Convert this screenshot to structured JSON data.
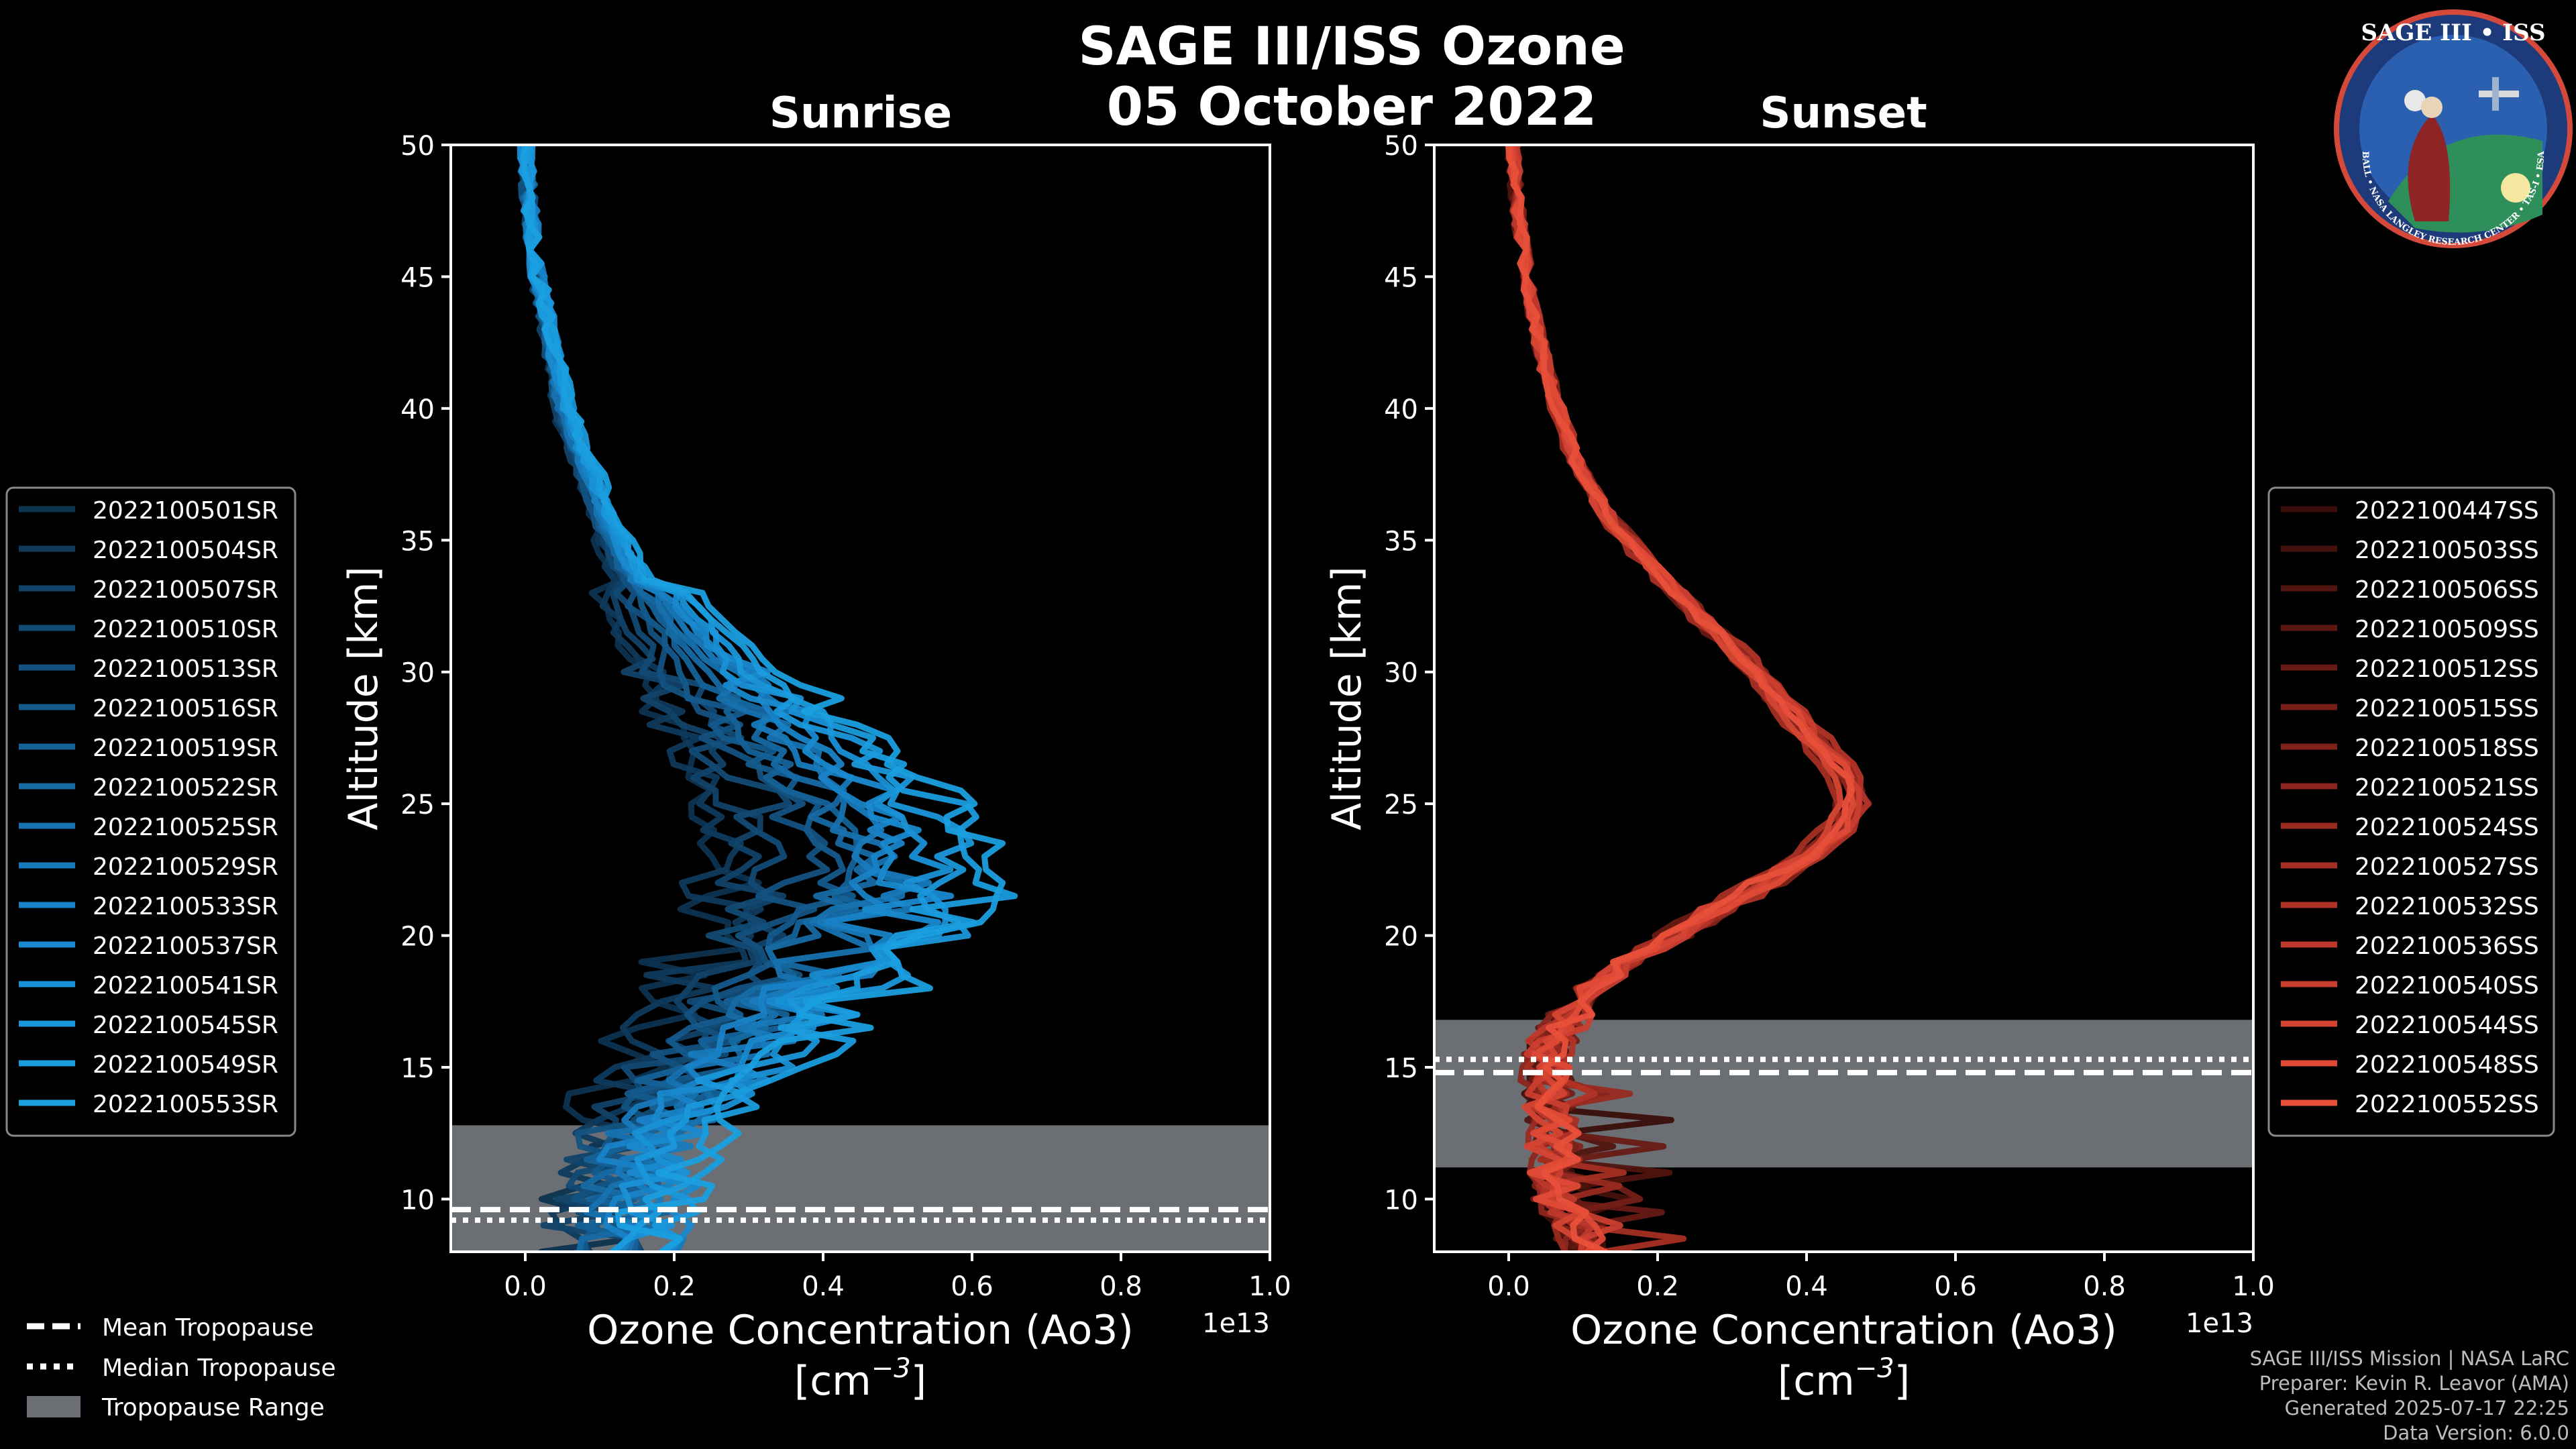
{
  "figure": {
    "title_line1": "SAGE III/ISS Ozone",
    "title_line2": "05 October 2022",
    "credits": [
      "SAGE III/ISS Mission | NASA LaRC",
      "Preparer: Kevin R. Leavor (AMA)",
      "Generated 2025-07-17 22:25",
      "Data Version: 6.0.0"
    ],
    "logo_text": "SAGE III • ISS",
    "logo_ring_text": "BALL • NASA LANGLEY RESEARCH CENTER • TAS-I • ESA"
  },
  "colors": {
    "sunrise": "#1a9fe0",
    "sunset": "#e8503a",
    "tropopause_range": "#6b6e73",
    "background": "#000000"
  },
  "bottom_legend": {
    "mean": "Mean Tropopause",
    "median": "Median Tropopause",
    "range": "Tropopause Range"
  },
  "chart_data": [
    {
      "type": "line",
      "title": "Sunrise",
      "xlabel": "Ozone Concentration (Ao3)",
      "xunit_base": "[cm",
      "xunit_exp": "−3",
      "xunit_close": "]",
      "offset_text": "1e13",
      "ylabel": "Altitude [km]",
      "xlim": [
        -0.1,
        1.0
      ],
      "ylim": [
        8,
        50
      ],
      "xticks": [
        "0.0",
        "0.2",
        "0.4",
        "0.6",
        "0.8",
        "1.0"
      ],
      "xtick_values": [
        0.0,
        0.2,
        0.4,
        0.6,
        0.8,
        1.0
      ],
      "yticks": [
        "10",
        "15",
        "20",
        "25",
        "30",
        "35",
        "40",
        "45",
        "50"
      ],
      "ytick_values": [
        10,
        15,
        20,
        25,
        30,
        35,
        40,
        45,
        50
      ],
      "tropopause": {
        "mean": 9.6,
        "median": 9.2,
        "range": [
          8.0,
          12.8
        ]
      },
      "base_profile": {
        "altitude": [
          50,
          48,
          45,
          43,
          40,
          38,
          36,
          34,
          32,
          30,
          28,
          26,
          25,
          24,
          23,
          22,
          21,
          20,
          19,
          18,
          17,
          16,
          15,
          14,
          13,
          12,
          11,
          10,
          9,
          8
        ],
        "ozone": [
          0.001,
          0.005,
          0.015,
          0.03,
          0.05,
          0.075,
          0.1,
          0.13,
          0.17,
          0.22,
          0.28,
          0.34,
          0.37,
          0.39,
          0.4,
          0.4,
          0.39,
          0.37,
          0.34,
          0.31,
          0.28,
          0.25,
          0.22,
          0.19,
          0.16,
          0.14,
          0.13,
          0.12,
          0.12,
          0.12
        ]
      },
      "series": [
        {
          "name": "2022100501SR",
          "color": "#0d3350",
          "scale": 0.65,
          "seed": 11
        },
        {
          "name": "2022100504SR",
          "color": "#0f3a5c",
          "scale": 0.7,
          "seed": 12
        },
        {
          "name": "2022100507SR",
          "color": "#114268",
          "scale": 0.78,
          "seed": 13
        },
        {
          "name": "2022100510SR",
          "color": "#124a74",
          "scale": 0.85,
          "seed": 14
        },
        {
          "name": "2022100513SR",
          "color": "#135280",
          "scale": 0.92,
          "seed": 15
        },
        {
          "name": "2022100516SR",
          "color": "#145a8c",
          "scale": 1.0,
          "seed": 16
        },
        {
          "name": "2022100519SR",
          "color": "#156298",
          "scale": 1.05,
          "seed": 17
        },
        {
          "name": "2022100522SR",
          "color": "#166aa4",
          "scale": 1.1,
          "seed": 18
        },
        {
          "name": "2022100525SR",
          "color": "#1772b0",
          "scale": 1.15,
          "seed": 19
        },
        {
          "name": "2022100529SR",
          "color": "#187abc",
          "scale": 1.2,
          "seed": 20
        },
        {
          "name": "2022100533SR",
          "color": "#1882c6",
          "scale": 1.25,
          "seed": 21
        },
        {
          "name": "2022100537SR",
          "color": "#198acf",
          "scale": 1.3,
          "seed": 22
        },
        {
          "name": "2022100541SR",
          "color": "#1991d6",
          "scale": 1.35,
          "seed": 23
        },
        {
          "name": "2022100545SR",
          "color": "#1a97db",
          "scale": 1.42,
          "seed": 24
        },
        {
          "name": "2022100549SR",
          "color": "#1a9cde",
          "scale": 1.5,
          "seed": 25
        },
        {
          "name": "2022100553SR",
          "color": "#1a9fe0",
          "scale": 1.55,
          "seed": 26
        }
      ]
    },
    {
      "type": "line",
      "title": "Sunset",
      "xlabel": "Ozone Concentration (Ao3)",
      "xunit_base": "[cm",
      "xunit_exp": "−3",
      "xunit_close": "]",
      "offset_text": "1e13",
      "ylabel": "Altitude [km]",
      "xlim": [
        -0.1,
        1.0
      ],
      "ylim": [
        8,
        50
      ],
      "xticks": [
        "0.0",
        "0.2",
        "0.4",
        "0.6",
        "0.8",
        "1.0"
      ],
      "xtick_values": [
        0.0,
        0.2,
        0.4,
        0.6,
        0.8,
        1.0
      ],
      "yticks": [
        "10",
        "15",
        "20",
        "25",
        "30",
        "35",
        "40",
        "45",
        "50"
      ],
      "ytick_values": [
        10,
        15,
        20,
        25,
        30,
        35,
        40,
        45,
        50
      ],
      "tropopause": {
        "mean": 14.8,
        "median": 15.3,
        "range": [
          11.2,
          16.8
        ]
      },
      "base_profile": {
        "altitude": [
          50,
          48,
          46,
          44,
          42,
          40,
          38,
          36,
          34,
          32,
          30,
          28,
          27,
          26,
          25,
          24,
          23,
          22,
          21,
          20,
          19,
          18,
          17,
          16,
          15,
          14,
          13,
          12,
          11,
          10,
          9,
          8
        ],
        "ozone": [
          0.005,
          0.01,
          0.02,
          0.03,
          0.045,
          0.065,
          0.09,
          0.13,
          0.19,
          0.26,
          0.33,
          0.39,
          0.42,
          0.45,
          0.46,
          0.44,
          0.4,
          0.34,
          0.28,
          0.22,
          0.16,
          0.11,
          0.08,
          0.06,
          0.05,
          0.05,
          0.06,
          0.06,
          0.06,
          0.07,
          0.09,
          0.1
        ]
      },
      "series": [
        {
          "name": "2022100447SS",
          "color": "#3a0e0a",
          "scale": 1.0,
          "seed": 31
        },
        {
          "name": "2022100503SS",
          "color": "#45110c",
          "scale": 1.02,
          "seed": 32
        },
        {
          "name": "2022100506SS",
          "color": "#50140f",
          "scale": 0.98,
          "seed": 33
        },
        {
          "name": "2022100509SS",
          "color": "#5c1711",
          "scale": 1.03,
          "seed": 34
        },
        {
          "name": "2022100512SS",
          "color": "#681a14",
          "scale": 0.97,
          "seed": 35
        },
        {
          "name": "2022100515SS",
          "color": "#741e17",
          "scale": 1.01,
          "seed": 36
        },
        {
          "name": "2022100518SS",
          "color": "#80221a",
          "scale": 1.04,
          "seed": 37
        },
        {
          "name": "2022100521SS",
          "color": "#8c261d",
          "scale": 0.99,
          "seed": 38
        },
        {
          "name": "2022100524SS",
          "color": "#982a20",
          "scale": 1.02,
          "seed": 39
        },
        {
          "name": "2022100527SS",
          "color": "#a52e23",
          "scale": 0.96,
          "seed": 40
        },
        {
          "name": "2022100532SS",
          "color": "#b13327",
          "scale": 1.05,
          "seed": 41
        },
        {
          "name": "2022100536SS",
          "color": "#bd382b",
          "scale": 1.0,
          "seed": 42
        },
        {
          "name": "2022100540SS",
          "color": "#c93e2f",
          "scale": 1.03,
          "seed": 43
        },
        {
          "name": "2022100544SS",
          "color": "#d44433",
          "scale": 0.98,
          "seed": 44
        },
        {
          "name": "2022100548SS",
          "color": "#df4a37",
          "scale": 1.02,
          "seed": 45
        },
        {
          "name": "2022100552SS",
          "color": "#e8503a",
          "scale": 1.0,
          "seed": 46
        }
      ]
    }
  ]
}
